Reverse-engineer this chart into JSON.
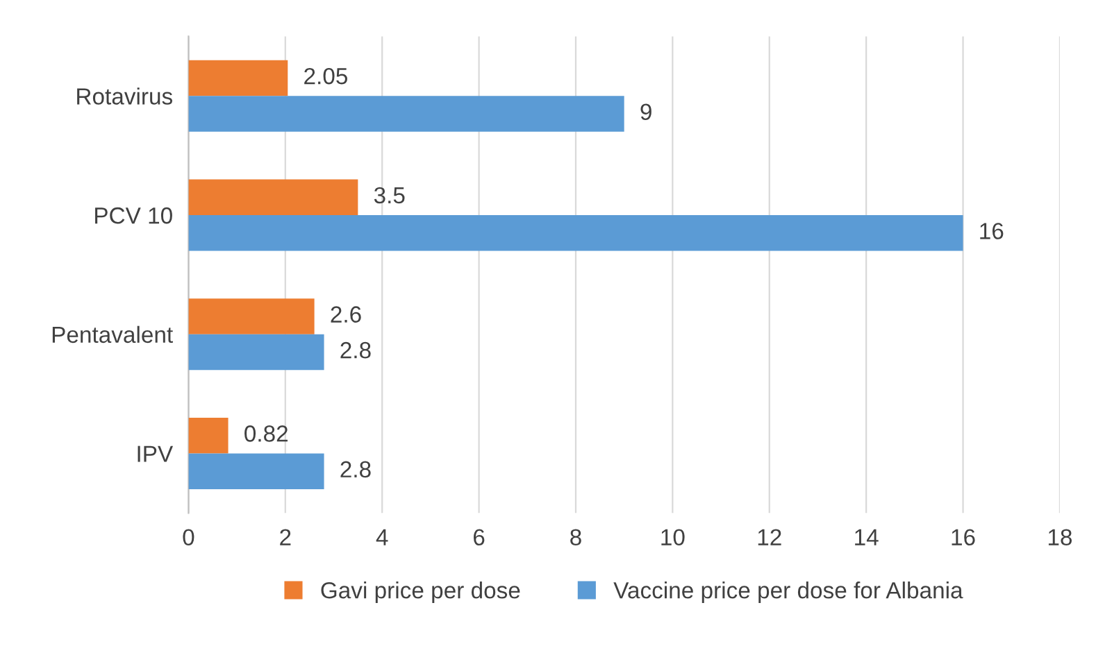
{
  "chart_data": {
    "type": "bar",
    "orientation": "horizontal",
    "categories": [
      "Rotavirus",
      "PCV 10",
      "Pentavalent",
      "IPV"
    ],
    "series": [
      {
        "name": "Gavi price per dose",
        "color": "#ed7d31",
        "values": [
          2.05,
          3.5,
          2.6,
          0.82
        ]
      },
      {
        "name": "Vaccine price per dose for Albania",
        "color": "#5b9bd5",
        "values": [
          9,
          16,
          2.8,
          2.8
        ]
      }
    ],
    "xlim": [
      0,
      18
    ],
    "xticks": [
      0,
      2,
      4,
      6,
      8,
      10,
      12,
      14,
      16,
      18
    ],
    "grid": "x",
    "legend": "bottom",
    "data_labels": true
  }
}
